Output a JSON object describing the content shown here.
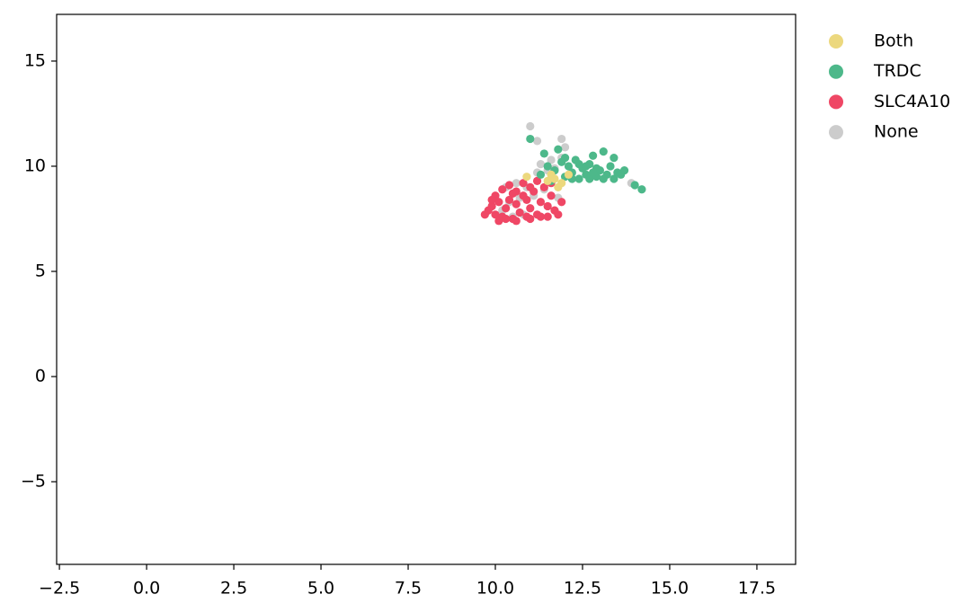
{
  "chart_data": {
    "type": "scatter",
    "xlim": [
      -2.58,
      18.61
    ],
    "ylim": [
      -8.93,
      17.22
    ],
    "xticks": [
      {
        "value": -2.5,
        "label": "−2.5"
      },
      {
        "value": 0,
        "label": "0.0"
      },
      2.5,
      {
        "value": 5,
        "label": "5.0"
      },
      7.5,
      {
        "value": 10,
        "label": "10.0"
      },
      12.5,
      {
        "value": 15,
        "label": "15.0"
      },
      17.5
    ],
    "yticks": [
      {
        "value": -5,
        "label": "−5"
      },
      0,
      5,
      10,
      15
    ],
    "grid": false,
    "legend": "outside-right",
    "series": [
      {
        "name": "Both",
        "color": "#ecd87e",
        "x": [
          10.9,
          11.6,
          11.7,
          11.9,
          12.1,
          11.8,
          11.5
        ],
        "values": [
          9.5,
          9.6,
          9.4,
          9.2,
          9.6,
          9.0,
          9.3
        ]
      },
      {
        "name": "TRDC",
        "color": "#4db88a",
        "x": [
          11.0,
          11.3,
          11.5,
          11.4,
          11.7,
          11.8,
          11.9,
          12.0,
          12.1,
          12.2,
          12.3,
          12.4,
          12.5,
          12.6,
          12.7,
          12.8,
          12.9,
          13.0,
          13.1,
          13.2,
          13.3,
          13.4,
          13.5,
          13.4,
          13.7,
          14.0,
          14.2,
          12.2,
          12.6,
          12.9,
          13.1,
          12.4,
          12.0,
          12.7,
          13.6,
          12.8,
          11.6
        ],
        "values": [
          11.3,
          9.6,
          10.0,
          10.6,
          9.8,
          10.8,
          10.2,
          9.5,
          10.0,
          9.7,
          10.3,
          9.4,
          9.9,
          9.6,
          10.1,
          10.5,
          9.5,
          9.8,
          10.7,
          9.6,
          10.0,
          9.4,
          9.7,
          10.4,
          9.8,
          9.1,
          8.9,
          9.4,
          10.0,
          9.9,
          9.4,
          10.1,
          10.4,
          9.4,
          9.6,
          9.7,
          9.3
        ]
      },
      {
        "name": "SLC4A10",
        "color": "#ef4765",
        "x": [
          9.8,
          9.9,
          10.0,
          10.1,
          10.2,
          10.3,
          10.4,
          10.5,
          10.6,
          10.7,
          10.8,
          10.9,
          11.0,
          11.1,
          11.2,
          11.3,
          11.4,
          11.5,
          11.6,
          11.7,
          11.9,
          10.0,
          10.2,
          10.4,
          10.6,
          10.8,
          11.0,
          11.2,
          9.7,
          10.1,
          10.3,
          10.6,
          11.0,
          11.5,
          11.8,
          10.5,
          10.9,
          11.3,
          9.9,
          11.6
        ],
        "values": [
          7.9,
          8.1,
          7.7,
          8.3,
          7.6,
          8.0,
          8.4,
          7.5,
          8.2,
          7.8,
          8.6,
          7.6,
          8.0,
          8.8,
          7.7,
          8.3,
          9.0,
          8.1,
          8.6,
          7.9,
          8.3,
          8.6,
          8.9,
          9.1,
          8.8,
          9.2,
          9.0,
          9.3,
          7.7,
          7.4,
          7.5,
          7.4,
          7.5,
          7.6,
          7.7,
          8.7,
          8.4,
          7.6,
          8.4,
          9.2
        ]
      },
      {
        "name": "None",
        "color": "#cccccc",
        "x": [
          11.0,
          11.2,
          11.9,
          12.0,
          11.9,
          11.3,
          11.6,
          11.5,
          10.6,
          10.4,
          10.2,
          10.8,
          11.1,
          11.4,
          11.8,
          10.9,
          10.5,
          13.9,
          11.2,
          10.7,
          11.7,
          10.3
        ],
        "values": [
          11.9,
          11.2,
          11.3,
          10.9,
          10.4,
          10.1,
          10.3,
          9.8,
          9.2,
          8.3,
          7.9,
          7.7,
          8.6,
          8.9,
          8.5,
          9.0,
          7.6,
          9.2,
          9.7,
          8.5,
          9.9,
          9.0
        ]
      }
    ]
  }
}
